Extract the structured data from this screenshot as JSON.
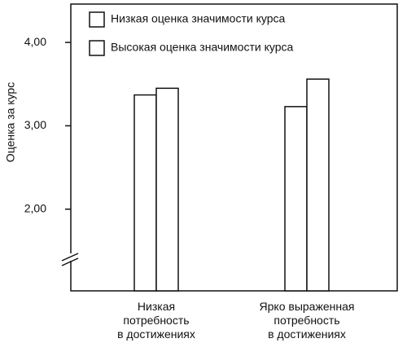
{
  "chart_data": {
    "type": "bar",
    "y_label": "Оценка за курс",
    "categories": [
      [
        "Низкая",
        "потребность",
        "в достижениях"
      ],
      [
        "Ярко выраженная",
        "потребность",
        "в достижениях"
      ]
    ],
    "series": [
      {
        "name": "Низкая оценка значимости курса",
        "color": "#ffffff",
        "values": [
          3.37,
          3.23
        ]
      },
      {
        "name": "Высокая оценка значимости курса",
        "color": "#ffffff",
        "values": [
          3.45,
          3.56
        ]
      }
    ],
    "ylim": [
      1.02,
      4.46
    ],
    "yticks": [
      {
        "value": 2,
        "label": "2,00"
      },
      {
        "value": 3,
        "label": "3,00"
      },
      {
        "value": 4,
        "label": "4,00"
      }
    ],
    "legend": "top-left"
  }
}
